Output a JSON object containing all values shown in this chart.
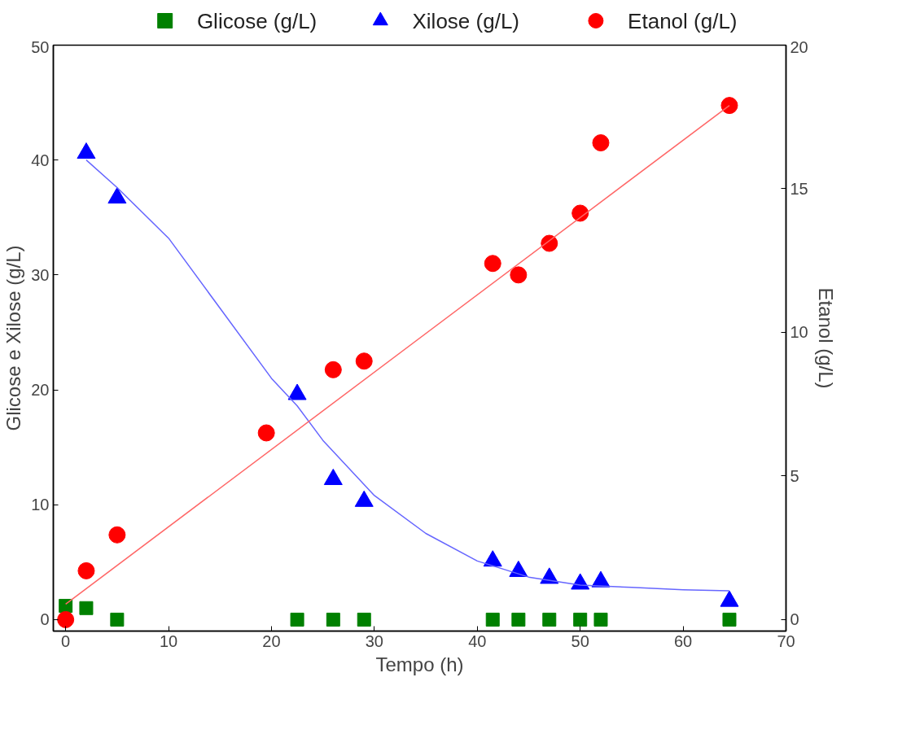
{
  "chart_data": {
    "type": "scatter",
    "xlabel": "Tempo (h)",
    "ylabel": "Glicose e Xilose (g/L)",
    "y2label": "Etanol (g/L)",
    "xlim": [
      -1.2,
      70
    ],
    "xticks": [
      0,
      10,
      20,
      30,
      40,
      50,
      60,
      70
    ],
    "ylim": [
      -1,
      50
    ],
    "yticks": [
      0,
      10,
      20,
      30,
      40,
      50
    ],
    "y2lim": [
      -0.4,
      20
    ],
    "y2ticks": [
      0,
      5,
      10,
      15,
      20
    ],
    "grid": false,
    "legend": "top",
    "series": [
      {
        "name": "Glicose (g/L)",
        "marker": "square",
        "color": "#008000",
        "x": [
          0,
          2,
          5,
          22.5,
          26,
          29,
          41.5,
          44,
          47,
          50,
          52,
          64.5
        ],
        "values": [
          1.2,
          1.0,
          0,
          0,
          0,
          0,
          0,
          0,
          0,
          0,
          0,
          0
        ]
      },
      {
        "name": "Xilose (g/L)",
        "marker": "triangle",
        "color": "#0000ff",
        "x": [
          2,
          5,
          22.5,
          26,
          29,
          41.5,
          44,
          47,
          50,
          52,
          64.5
        ],
        "values": [
          40.6,
          36.7,
          19.6,
          12.2,
          10.3,
          5.1,
          4.2,
          3.6,
          3.1,
          3.3,
          1.6
        ]
      },
      {
        "name": "Etanol (g/L)",
        "marker": "circle",
        "color": "#ff0000",
        "axis": "y2",
        "x": [
          0,
          2,
          5,
          19.5,
          26,
          29,
          41.5,
          44,
          47,
          50,
          52,
          64.5
        ],
        "values": [
          0,
          1.7,
          2.95,
          6.5,
          8.7,
          9.0,
          12.4,
          12.0,
          13.1,
          14.15,
          16.6,
          17.9
        ]
      },
      {
        "type": "line",
        "color": "#6666ff",
        "x": [
          2,
          5,
          10,
          15,
          20,
          22.5,
          25,
          30,
          35,
          40,
          45,
          50,
          55,
          60,
          64.5
        ],
        "values": [
          40.0,
          37.6,
          33.2,
          27.1,
          21.0,
          18.6,
          15.6,
          10.8,
          7.5,
          5.1,
          3.7,
          3.0,
          2.8,
          2.6,
          2.5
        ]
      },
      {
        "type": "line",
        "color": "#ff6666",
        "axis": "y2",
        "x": [
          0,
          64.5
        ],
        "values": [
          0.54,
          17.9
        ]
      }
    ]
  }
}
